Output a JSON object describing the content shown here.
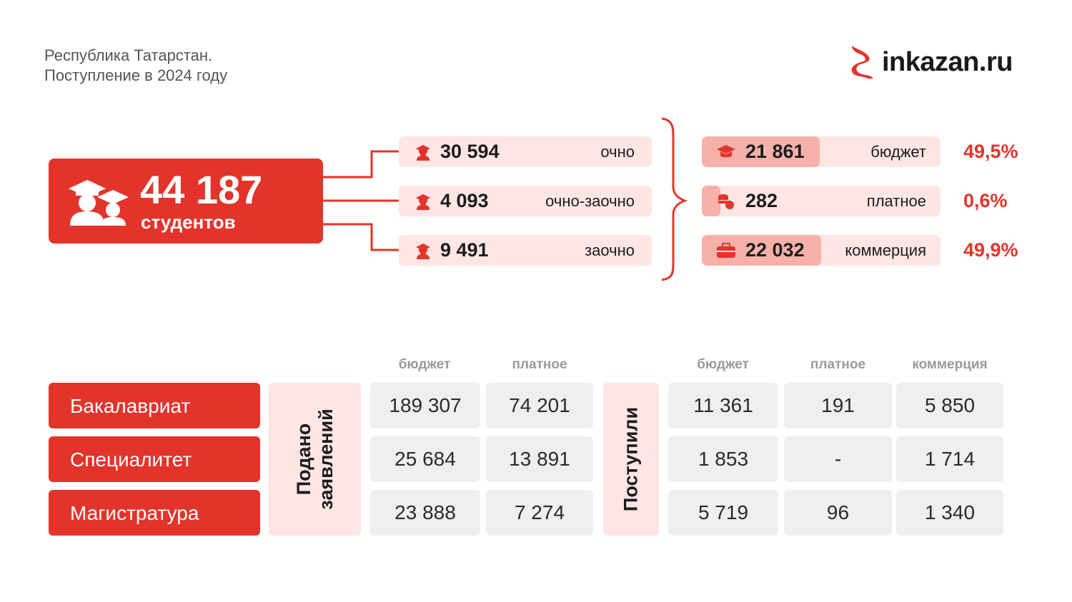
{
  "header": {
    "title_line1": "Республика Татарстан.",
    "title_line2": "Поступление в 2024 году",
    "logo_text": "inkazan.ru"
  },
  "colors": {
    "accent": "#e3342b",
    "pill_bg": "#fde6e4",
    "pill_fill": "#f6b1ab",
    "cell_bg": "#efefef"
  },
  "total": {
    "value": "44 187",
    "label": "студентов",
    "icon": "graduates-icon"
  },
  "study_forms": [
    {
      "value": "30 594",
      "label": "очно",
      "icon": "student-icon"
    },
    {
      "value": "4 093",
      "label": "очно-заочно",
      "icon": "student-icon"
    },
    {
      "value": "9 491",
      "label": "заочно",
      "icon": "student-icon"
    }
  ],
  "financing": [
    {
      "value": "21 861",
      "label": "бюджет",
      "percent": "49,5%",
      "share": 0.495,
      "icon": "graduation-cap-icon"
    },
    {
      "value": "282",
      "label": "платное",
      "percent": "0,6%",
      "share": 0.006,
      "icon": "coins-icon"
    },
    {
      "value": "22 032",
      "label": "коммерция",
      "percent": "49,9%",
      "share": 0.499,
      "icon": "briefcase-icon"
    }
  ],
  "table": {
    "applied_label_line1": "Подано",
    "applied_label_line2": "заявлений",
    "enrolled_label": "Поступили",
    "applied_columns": [
      "бюджет",
      "платное"
    ],
    "enrolled_columns": [
      "бюджет",
      "платное",
      "коммерция"
    ],
    "rows": [
      {
        "name": "Бакалавриат",
        "applied": [
          "189 307",
          "74 201"
        ],
        "enrolled": [
          "11 361",
          "191",
          "5 850"
        ]
      },
      {
        "name": "Специалитет",
        "applied": [
          "25 684",
          "13 891"
        ],
        "enrolled": [
          "1 853",
          "-",
          "1 714"
        ]
      },
      {
        "name": "Магистратура",
        "applied": [
          "23 888",
          "7 274"
        ],
        "enrolled": [
          "5 719",
          "96",
          "1 340"
        ]
      }
    ]
  },
  "chart_data": {
    "type": "table",
    "total_students": 44187,
    "study_forms": {
      "categories": [
        "очно",
        "очно-заочно",
        "заочно"
      ],
      "values": [
        30594,
        4093,
        9491
      ]
    },
    "financing": {
      "categories": [
        "бюджет",
        "платное",
        "коммерция"
      ],
      "values": [
        21861,
        282,
        22032
      ],
      "percent": [
        49.5,
        0.6,
        49.9
      ]
    },
    "applications": {
      "columns": [
        "бюджет",
        "платное"
      ],
      "rows": [
        "Бакалавриат",
        "Специалитет",
        "Магистратура"
      ],
      "values": [
        [
          189307,
          74201
        ],
        [
          25684,
          13891
        ],
        [
          23888,
          7274
        ]
      ]
    },
    "enrolled": {
      "columns": [
        "бюджет",
        "платное",
        "коммерция"
      ],
      "rows": [
        "Бакалавриат",
        "Специалитет",
        "Магистратура"
      ],
      "values": [
        [
          11361,
          191,
          5850
        ],
        [
          1853,
          null,
          1714
        ],
        [
          5719,
          96,
          1340
        ]
      ]
    }
  }
}
